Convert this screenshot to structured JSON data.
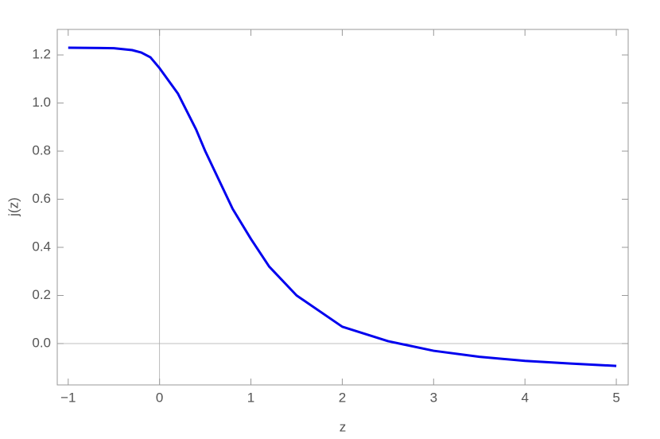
{
  "chart_data": {
    "type": "line",
    "x_label": "z",
    "y_label": "j(z)",
    "x": [
      -1,
      -0.5,
      -0.3,
      -0.2,
      -0.1,
      0,
      0.2,
      0.4,
      0.5,
      0.6,
      0.8,
      1.0,
      1.2,
      1.5,
      2.0,
      2.5,
      3.0,
      3.5,
      4.0,
      4.5,
      5.0
    ],
    "series": [
      {
        "name": "j(z)",
        "color": "#0000ee",
        "values": [
          1.23,
          1.228,
          1.22,
          1.21,
          1.19,
          1.145,
          1.04,
          0.89,
          0.8,
          0.72,
          0.56,
          0.435,
          0.32,
          0.2,
          0.07,
          0.01,
          -0.03,
          -0.055,
          -0.072,
          -0.083,
          -0.093
        ]
      }
    ],
    "xlim": [
      -1.12,
      5.13
    ],
    "ylim": [
      -0.172,
      1.306
    ],
    "xticks": [
      {
        "value": -1,
        "label": "−1"
      },
      0,
      1,
      2,
      3,
      4,
      5
    ],
    "yticks": [
      {
        "value": 0,
        "label": "0.0"
      },
      0.2,
      0.4,
      0.6,
      0.8,
      {
        "value": 1,
        "label": "1.0"
      },
      1.2
    ],
    "grid": false
  }
}
